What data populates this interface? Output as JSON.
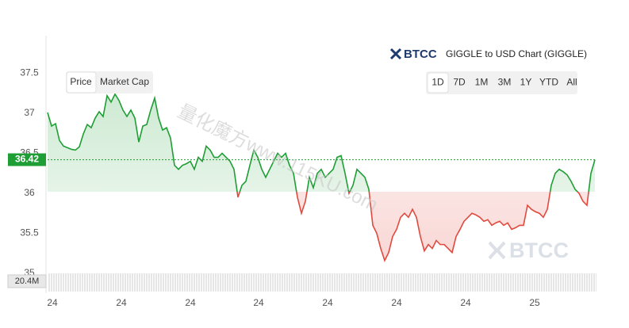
{
  "chart_data": {
    "type": "line",
    "logo": "BTCC",
    "title": "GIGGLE to USD Chart (GIGGLE)",
    "tabs": [
      "Price",
      "Market Cap"
    ],
    "ranges": [
      "1D",
      "7D",
      "1M",
      "3M",
      "1Y",
      "YTD",
      "All"
    ],
    "selected_range": "1D",
    "current_price": 36.42,
    "volume_label": "20.4M",
    "watermarks": [
      "量化魔方www.115KU.com",
      "BTCC"
    ],
    "baseline": 36.02,
    "up_color": "#1e9e34",
    "down_color": "#e04a3f",
    "x": [
      0,
      1,
      2,
      3,
      4,
      5,
      6,
      7,
      8,
      9,
      10,
      11,
      12,
      13,
      14,
      15,
      16,
      17,
      18,
      19,
      20,
      21,
      22,
      23,
      24,
      25,
      26,
      27,
      28,
      29,
      30,
      31,
      32,
      33,
      34,
      35,
      36,
      37,
      38,
      39,
      40,
      41,
      42,
      43,
      44,
      45,
      46,
      47,
      48,
      49,
      50,
      51,
      52,
      53,
      54,
      55,
      56,
      57,
      58,
      59,
      60,
      61,
      62,
      63,
      64,
      65,
      66,
      67,
      68,
      69,
      70,
      71,
      72,
      73,
      74,
      75,
      76,
      77,
      78,
      79,
      80,
      81,
      82,
      83,
      84,
      85,
      86,
      87,
      88,
      89,
      90,
      91,
      92,
      93,
      94,
      95,
      96,
      97,
      98,
      99,
      100,
      101,
      102,
      103,
      104,
      105,
      106,
      107,
      108,
      109,
      110,
      111,
      112,
      113,
      114,
      115,
      116,
      117,
      118,
      119,
      120,
      121,
      122,
      123,
      124,
      125,
      126,
      127,
      128,
      129,
      130,
      131,
      132,
      133,
      134,
      135,
      136,
      137,
      138
    ],
    "series": [
      {
        "name": "Price",
        "values": [
          37.01,
          36.84,
          36.87,
          36.66,
          36.59,
          36.57,
          36.55,
          36.54,
          36.58,
          36.74,
          36.86,
          36.82,
          36.94,
          37.02,
          36.96,
          37.22,
          37.14,
          37.24,
          37.16,
          37.04,
          36.96,
          37.04,
          36.94,
          36.64,
          36.84,
          36.86,
          37.04,
          37.19,
          36.94,
          36.79,
          36.82,
          36.69,
          36.35,
          36.3,
          36.35,
          36.37,
          36.4,
          36.3,
          36.45,
          36.4,
          36.59,
          36.54,
          36.45,
          36.45,
          36.5,
          36.45,
          36.4,
          36.3,
          35.95,
          36.1,
          36.15,
          36.35,
          36.54,
          36.45,
          36.3,
          36.2,
          36.3,
          36.4,
          36.5,
          36.45,
          36.5,
          36.35,
          36.25,
          35.95,
          35.75,
          35.9,
          36.2,
          36.07,
          36.25,
          36.3,
          36.2,
          36.25,
          36.3,
          36.45,
          36.47,
          36.25,
          36.0,
          36.1,
          36.3,
          36.25,
          36.2,
          36.05,
          35.6,
          35.5,
          35.31,
          35.16,
          35.26,
          35.46,
          35.55,
          35.7,
          35.75,
          35.7,
          35.8,
          35.7,
          35.46,
          35.28,
          35.36,
          35.31,
          35.41,
          35.36,
          35.36,
          35.31,
          35.26,
          35.46,
          35.55,
          35.65,
          35.7,
          35.75,
          35.73,
          35.7,
          35.65,
          35.67,
          35.6,
          35.63,
          35.65,
          35.6,
          35.63,
          35.55,
          35.57,
          35.6,
          35.6,
          35.85,
          35.8,
          35.77,
          35.75,
          35.7,
          35.8,
          36.1,
          36.25,
          36.3,
          36.27,
          36.23,
          36.15,
          36.05,
          36.0,
          35.9,
          35.85,
          36.25,
          36.42
        ]
      }
    ],
    "xlim": [
      0,
      138
    ],
    "xticks": [
      {
        "value": 1.2,
        "label": "24"
      },
      {
        "value": 18.6,
        "label": "24"
      },
      {
        "value": 36,
        "label": "24"
      },
      {
        "value": 53.2,
        "label": "24"
      },
      {
        "value": 70.6,
        "label": "24"
      },
      {
        "value": 88,
        "label": "24"
      },
      {
        "value": 105.4,
        "label": "24"
      },
      {
        "value": 122.8,
        "label": "25"
      }
    ],
    "ylim": [
      35,
      37.97
    ],
    "yticks": [
      35,
      35.5,
      36,
      36.5,
      37,
      37.5
    ]
  }
}
